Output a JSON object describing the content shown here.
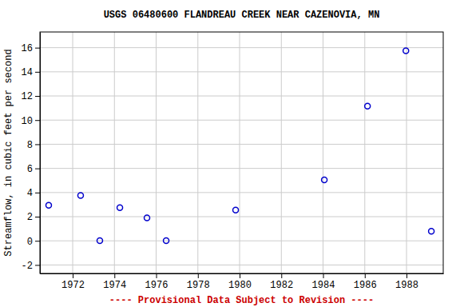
{
  "chart_data": {
    "type": "scatter",
    "title": "USGS 06480600 FLANDREAU CREEK NEAR CAZENOVIA, MN",
    "y_label": "Streamflow, in cubic feet per second",
    "footer": "---- Provisional Data Subject to Revision ----",
    "x": [
      1970.85,
      1972.38,
      1973.3,
      1974.26,
      1975.56,
      1976.48,
      1979.81,
      1984.06,
      1986.13,
      1987.97,
      1989.19
    ],
    "values": [
      2.95,
      3.75,
      0.02,
      2.75,
      1.9,
      0.02,
      2.55,
      5.05,
      11.15,
      15.75,
      0.8
    ],
    "color": "#0000cc",
    "marker": "circle-open",
    "xlim": [
      1970.43,
      1989.76
    ],
    "xticks": [
      1972,
      1974,
      1976,
      1978,
      1980,
      1982,
      1984,
      1986,
      1988
    ],
    "ylim": [
      -2.7,
      17.3
    ],
    "yticks": [
      -2,
      0,
      2,
      4,
      6,
      8,
      10,
      12,
      14,
      16
    ],
    "grid": true
  }
}
